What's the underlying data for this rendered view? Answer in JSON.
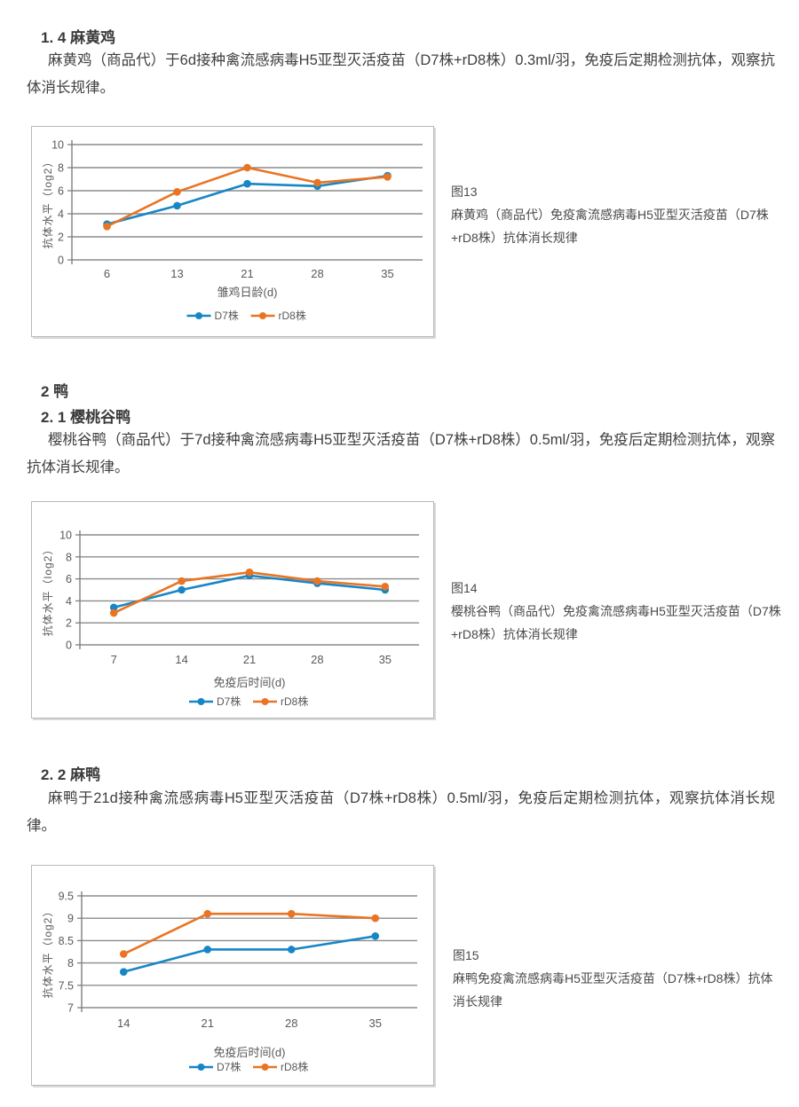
{
  "sections": [
    {
      "heading": "1. 4 麻黄鸡",
      "body": "麻黄鸡（商品代）于6d接种禽流感病毒H5亚型灭活疫苗（D7株+rD8株）0.3ml/羽，免疫后定期检测抗体，观察抗体消长规律。"
    },
    {
      "heading": "2 鸭",
      "subheading": "2. 1 樱桃谷鸭",
      "body": "樱桃谷鸭（商品代）于7d接种禽流感病毒H5亚型灭活疫苗（D7株+rD8株）0.5ml/羽，免疫后定期检测抗体，观察抗体消长规律。"
    },
    {
      "heading": "2. 2 麻鸭",
      "body": "麻鸭于21d接种禽流感病毒H5亚型灭活疫苗（D7株+rD8株）0.5ml/羽，免疫后定期检测抗体，观察抗体消长规律。"
    }
  ],
  "figures": [
    {
      "id": "图13",
      "caption": "麻黄鸡（商品代）免疫禽流感病毒H5亚型灭活疫苗（D7株+rD8株）抗体消长规律"
    },
    {
      "id": "图14",
      "caption": " 樱桃谷鸭（商品代）免疫禽流感病毒H5亚型灭活疫苗（D7株+rD8株）抗体消长规律"
    },
    {
      "id": "图15",
      "caption": "麻鸭免疫禽流感病毒H5亚型灭活疫苗（D7株+rD8株）抗体消长规律"
    }
  ],
  "colors": {
    "series_blue": "#1786C6",
    "series_orange": "#E97524",
    "gridline": "#8C8C8C",
    "axis": "#7F7F7F",
    "chart_text": "#595959"
  },
  "chart_data": [
    {
      "type": "line",
      "title": "",
      "xlabel": "雏鸡日龄(d)",
      "ylabel": "抗体水平（log2）",
      "categories": [
        "6",
        "13",
        "21",
        "28",
        "35"
      ],
      "ylim": [
        0,
        10
      ],
      "yticks": [
        0,
        2,
        4,
        6,
        8,
        10
      ],
      "grid": true,
      "legend_position": "bottom",
      "series": [
        {
          "name": "D7株",
          "color": "#1786C6",
          "values": [
            3.1,
            4.7,
            6.6,
            6.4,
            7.3
          ]
        },
        {
          "name": "rD8株",
          "color": "#E97524",
          "values": [
            2.9,
            5.9,
            8.0,
            6.7,
            7.2
          ]
        }
      ]
    },
    {
      "type": "line",
      "title": "",
      "xlabel": "免疫后时间(d)",
      "ylabel": "抗体水平（log2）",
      "categories": [
        "7",
        "14",
        "21",
        "28",
        "35"
      ],
      "ylim": [
        0,
        10
      ],
      "yticks": [
        0,
        2,
        4,
        6,
        8,
        10
      ],
      "grid": true,
      "legend_position": "bottom",
      "series": [
        {
          "name": "D7株",
          "color": "#1786C6",
          "values": [
            3.4,
            5.0,
            6.3,
            5.6,
            5.0
          ]
        },
        {
          "name": "rD8株",
          "color": "#E97524",
          "values": [
            2.9,
            5.8,
            6.6,
            5.8,
            5.3
          ]
        }
      ]
    },
    {
      "type": "line",
      "title": "",
      "xlabel": "免疫后时间(d)",
      "ylabel": "抗体水平（log2）",
      "categories": [
        "14",
        "21",
        "28",
        "35"
      ],
      "ylim": [
        7,
        9.5
      ],
      "yticks": [
        7,
        7.5,
        8,
        8.5,
        9,
        9.5
      ],
      "grid": true,
      "legend_position": "bottom",
      "series": [
        {
          "name": "D7株",
          "color": "#1786C6",
          "values": [
            7.8,
            8.3,
            8.3,
            8.6
          ]
        },
        {
          "name": "rD8株",
          "color": "#E97524",
          "values": [
            8.2,
            9.1,
            9.1,
            9.0
          ]
        }
      ]
    }
  ]
}
